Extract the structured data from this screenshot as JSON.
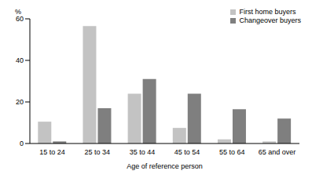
{
  "chart_data": {
    "type": "bar",
    "y_label": "%",
    "x_label": "Age of reference person",
    "categories": [
      "15 to 24",
      "25 to 34",
      "35 to 44",
      "45 to 54",
      "55 to 64",
      "65 and over"
    ],
    "series": [
      {
        "name": "First home buyers",
        "color": "#c3c3c3",
        "values": [
          10.5,
          56.5,
          24,
          7.5,
          2,
          1
        ]
      },
      {
        "name": "Changeover buyers",
        "color": "#7f7f7f",
        "values": [
          1,
          17,
          31,
          24,
          16.5,
          12
        ]
      }
    ],
    "ylim": [
      0,
      60
    ],
    "yticks": [
      0,
      20,
      40,
      60
    ],
    "grid": false,
    "legend": "top-right"
  }
}
